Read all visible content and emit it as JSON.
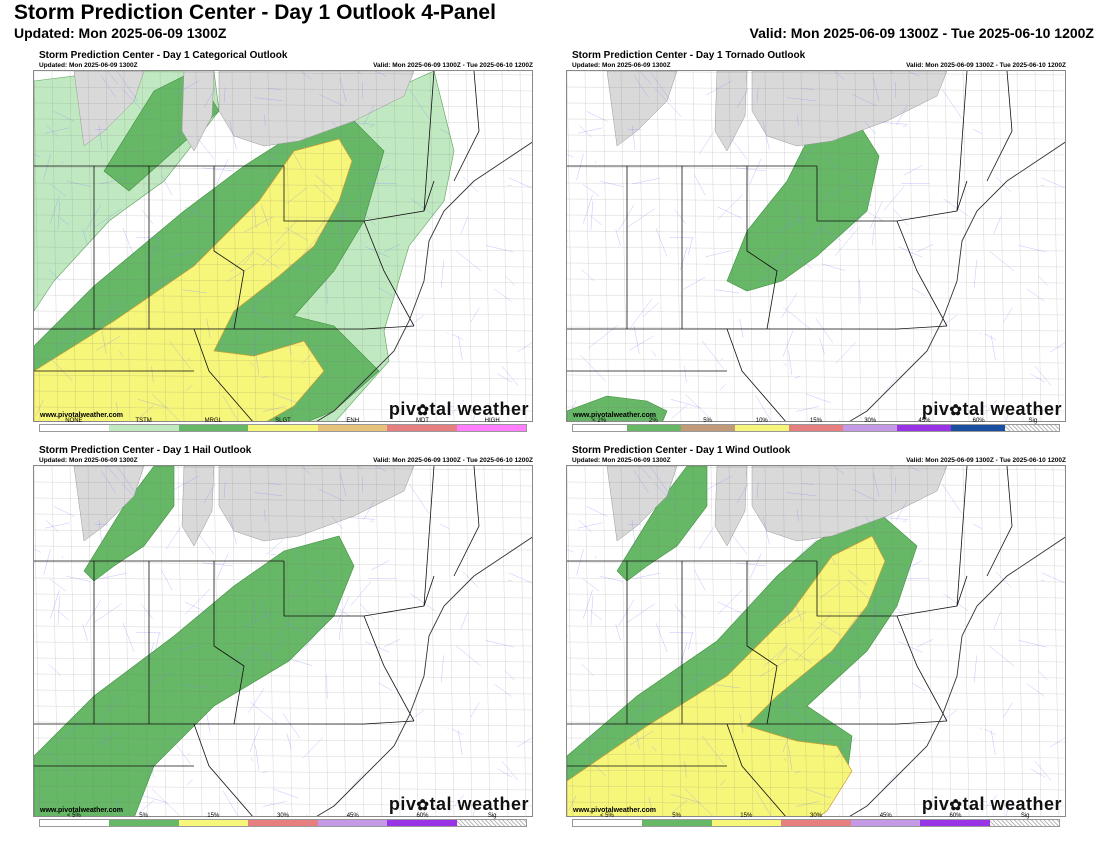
{
  "header": {
    "title": "Storm Prediction Center - Day 1 Outlook 4-Panel",
    "updated": "Updated: Mon 2025-06-09 1300Z",
    "valid": "Valid: Mon 2025-06-09 1300Z - Tue 2025-06-10 1200Z"
  },
  "panels": [
    {
      "title": "Storm Prediction Center - Day 1 Categorical Outlook",
      "updated": "Updated: Mon 2025-06-09 1300Z",
      "valid": "Valid: Mon 2025-06-09 1300Z - Tue 2025-06-10 1200Z",
      "url": "www.pivotalweather.com",
      "legend": [
        {
          "label": "NONE",
          "color": "#ffffff"
        },
        {
          "label": "TSTM",
          "color": "#c1e9c1"
        },
        {
          "label": "MRGL",
          "color": "#66b866"
        },
        {
          "label": "SLGT",
          "color": "#f6f67b"
        },
        {
          "label": "ENH",
          "color": "#e6c27a"
        },
        {
          "label": "MDT",
          "color": "#e67f7f"
        },
        {
          "label": "HIGH",
          "color": "#ff7fff"
        }
      ]
    },
    {
      "title": "Storm Prediction Center - Day 1 Tornado Outlook",
      "updated": "Updated: Mon 2025-06-09 1300Z",
      "valid": "Valid: Mon 2025-06-09 1300Z - Tue 2025-06-10 1200Z",
      "url": "",
      "legend": [
        {
          "label": "< 2%",
          "color": "#ffffff"
        },
        {
          "label": "2%",
          "color": "#66b866"
        },
        {
          "label": "5%",
          "color": "#c19a7a"
        },
        {
          "label": "10%",
          "color": "#f6f67b"
        },
        {
          "label": "15%",
          "color": "#e67f7f"
        },
        {
          "label": "30%",
          "color": "#c49ae6"
        },
        {
          "label": "45%",
          "color": "#9933e6"
        },
        {
          "label": "60%",
          "color": "#1a4fa0"
        },
        {
          "label": "Sig",
          "color": "hatch"
        }
      ]
    },
    {
      "title": "Storm Prediction Center - Day 1 Hail Outlook",
      "updated": "Updated: Mon 2025-06-09 1300Z",
      "valid": "Valid: Mon 2025-06-09 1300Z - Tue 2025-06-10 1200Z",
      "url": "www.pivotalweather.com",
      "legend": [
        {
          "label": "< 5%",
          "color": "#ffffff"
        },
        {
          "label": "5%",
          "color": "#66b866"
        },
        {
          "label": "15%",
          "color": "#f6f67b"
        },
        {
          "label": "30%",
          "color": "#e67f7f"
        },
        {
          "label": "45%",
          "color": "#c49ae6"
        },
        {
          "label": "60%",
          "color": "#9933e6"
        },
        {
          "label": "Sig",
          "color": "hatch"
        }
      ]
    },
    {
      "title": "Storm Prediction Center - Day 1 Wind Outlook",
      "updated": "Updated: Mon 2025-06-09 1300Z",
      "valid": "Valid: Mon 2025-06-09 1300Z - Tue 2025-06-10 1200Z",
      "url": "www.pivotalweather.com",
      "legend": [
        {
          "label": "< 5%",
          "color": "#ffffff"
        },
        {
          "label": "5%",
          "color": "#66b866"
        },
        {
          "label": "15%",
          "color": "#f6f67b"
        },
        {
          "label": "30%",
          "color": "#e67f7f"
        },
        {
          "label": "45%",
          "color": "#c49ae6"
        },
        {
          "label": "60%",
          "color": "#9933e6"
        },
        {
          "label": "Sig",
          "color": "hatch"
        }
      ]
    }
  ],
  "brand": {
    "text_left": "piv",
    "icon": "gear-icon",
    "text_right": "tal weather"
  },
  "colors": {
    "tstm": "#c1e9c1",
    "mrgl": "#66b866",
    "slgt": "#f6f67b",
    "lake": "#d9d9d9",
    "roads": "#8080ff"
  }
}
